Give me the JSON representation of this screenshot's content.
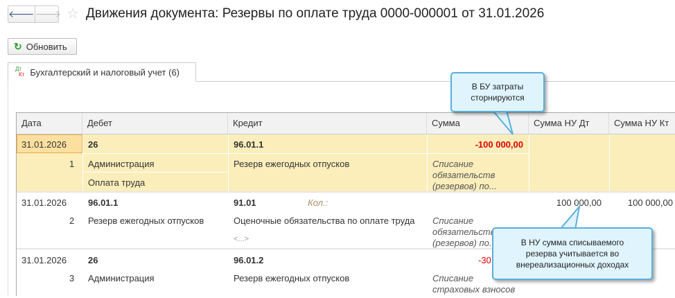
{
  "window": {
    "title": "Движения документа: Резервы по оплате труда 0000-000001 от 31.01.2026",
    "back_icon": "arrow-left",
    "forward_icon": "arrow-right",
    "favorite_icon": "star"
  },
  "toolbar": {
    "refresh_label": "Обновить"
  },
  "tab": {
    "icon_top": "Дт",
    "icon_bottom": "Кт",
    "label": "Бухгалтерский и налоговый учет (6)"
  },
  "table": {
    "columns": [
      "Дата",
      "Дебет",
      "Кредит",
      "Сумма",
      "Сумма НУ Дт",
      "Сумма НУ Кт"
    ],
    "rows": [
      {
        "date": "31.01.2026",
        "num": "1",
        "debit": "26",
        "debit_sub1": "Администрация",
        "debit_sub2": "Оплата труда",
        "credit": "96.01.1",
        "credit_sub1": "Резерв ежегодных отпусков",
        "sum": "-100 000,00",
        "content": [
          "Списание",
          "обязательств",
          "(резервов) по..."
        ]
      },
      {
        "date": "31.01.2026",
        "num": "2",
        "debit": "96.01.1",
        "debit_sub1": "Резерв ежегодных отпусков",
        "credit": "91.01",
        "qty_label": "Кол.:",
        "credit_sub1": "Оценочные обязательства по оплате труда",
        "credit_sub2": "<...>",
        "content": [
          "Списание",
          "обязательств",
          "(резервов) по..."
        ],
        "sum_nu_dt": "100 000,00",
        "sum_nu_kt": "100 000,00"
      },
      {
        "date": "31.01.2026",
        "num": "3",
        "debit": "26",
        "debit_sub1": "Администрация",
        "credit": "96.01.2",
        "credit_sub1": "Резерв ежегодных отпусков",
        "sum": "-30",
        "content": [
          "Списание",
          "страховых взносов"
        ]
      }
    ]
  },
  "callouts": [
    {
      "text": "В БУ затраты сторнируются"
    },
    {
      "text": "В НУ сумма списываемого резерва учитывается во внереализационных доходах"
    }
  ],
  "colors": {
    "selected_row": "#fbeebb",
    "negative": "#e00000",
    "callout_bg": "#dff4fd",
    "callout_border": "#5aaedc"
  }
}
